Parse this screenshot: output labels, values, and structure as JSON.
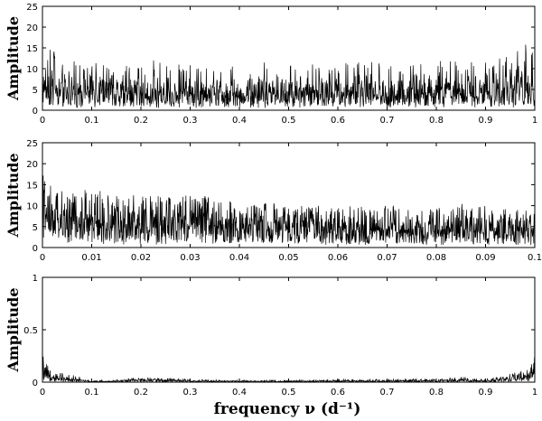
{
  "figure": {
    "xlabel": "frequency ν (d⁻¹)"
  },
  "chart_data": [
    {
      "type": "line",
      "title": "",
      "ylabel": "Amplitude",
      "xlim": [
        0,
        1
      ],
      "ylim": [
        0,
        25
      ],
      "xticks": [
        0,
        0.1,
        0.2,
        0.3,
        0.4,
        0.5,
        0.6,
        0.7,
        0.8,
        0.9,
        1
      ],
      "xtick_labels": [
        "0",
        "0.1",
        "0.2",
        "0.3",
        "0.4",
        "0.5",
        "0.6",
        "0.7",
        "0.8",
        "0.9",
        "1"
      ],
      "yticks": [
        0,
        5,
        10,
        15,
        20,
        25
      ],
      "ytick_labels": [
        "0",
        "5",
        "10",
        "15",
        "20",
        "25"
      ],
      "grid": false,
      "series": [
        {
          "color": "#000000",
          "style": "dense noise-like periodogram",
          "x": [
            0,
            0.02,
            0.05,
            0.1,
            0.15,
            0.2,
            0.25,
            0.3,
            0.35,
            0.4,
            0.45,
            0.5,
            0.55,
            0.6,
            0.65,
            0.7,
            0.75,
            0.8,
            0.85,
            0.9,
            0.95,
            0.98,
            1
          ],
          "envelope_max": [
            16,
            15,
            13,
            12,
            11,
            12,
            12,
            11,
            11,
            11,
            12,
            12,
            11,
            11,
            12,
            11,
            11,
            12,
            12,
            12,
            13,
            16,
            17
          ],
          "envelope_mean": [
            5,
            4.8,
            4.5,
            4.2,
            4,
            4,
            4,
            3.9,
            3.8,
            3.8,
            3.9,
            4,
            3.9,
            3.8,
            3.9,
            3.9,
            3.9,
            4,
            4.1,
            4.3,
            4.6,
            5,
            5.5
          ]
        }
      ]
    },
    {
      "type": "line",
      "title": "",
      "ylabel": "Amplitude",
      "xlim": [
        0,
        0.1
      ],
      "ylim": [
        0,
        25
      ],
      "xticks": [
        0,
        0.01,
        0.02,
        0.03,
        0.04,
        0.05,
        0.06,
        0.07,
        0.08,
        0.09,
        0.1
      ],
      "xtick_labels": [
        "0",
        "0.01",
        "0.02",
        "0.03",
        "0.04",
        "0.05",
        "0.06",
        "0.07",
        "0.08",
        "0.09",
        "0.1"
      ],
      "yticks": [
        0,
        5,
        10,
        15,
        20,
        25
      ],
      "ytick_labels": [
        "0",
        "5",
        "10",
        "15",
        "20",
        "25"
      ],
      "grid": false,
      "series": [
        {
          "color": "#000000",
          "style": "noise-like periodogram, zoomed",
          "x": [
            0,
            0.0005,
            0.001,
            0.002,
            0.005,
            0.01,
            0.015,
            0.02,
            0.025,
            0.03,
            0.035,
            0.04,
            0.045,
            0.05,
            0.055,
            0.06,
            0.065,
            0.07,
            0.075,
            0.08,
            0.085,
            0.09,
            0.095,
            0.1
          ],
          "envelope_max": [
            20,
            24,
            17,
            15,
            13,
            14,
            13,
            13,
            12,
            13,
            12,
            11,
            11,
            10,
            10,
            10,
            10,
            10,
            10,
            10,
            11,
            10,
            9,
            9
          ],
          "envelope_mean": [
            7,
            8,
            7,
            6.5,
            6,
            6,
            5.8,
            5.6,
            5.5,
            5.5,
            5.3,
            5,
            4.8,
            4.6,
            4.5,
            4.4,
            4.4,
            4.3,
            4.3,
            4.3,
            4.4,
            4.2,
            4.1,
            4
          ]
        }
      ]
    },
    {
      "type": "line",
      "title": "",
      "ylabel": "Amplitude",
      "xlabel": "frequency ν (d⁻¹)",
      "xlim": [
        0,
        1
      ],
      "ylim": [
        0,
        1
      ],
      "xticks": [
        0,
        0.1,
        0.2,
        0.3,
        0.4,
        0.5,
        0.6,
        0.7,
        0.8,
        0.9,
        1
      ],
      "xtick_labels": [
        "0",
        "0.1",
        "0.2",
        "0.3",
        "0.4",
        "0.5",
        "0.6",
        "0.7",
        "0.8",
        "0.9",
        "1"
      ],
      "yticks": [
        0,
        0.5,
        1
      ],
      "ytick_labels": [
        "0",
        "0.5",
        "1"
      ],
      "grid": false,
      "series": [
        {
          "color": "#000000",
          "style": "spectral window",
          "x": [
            0,
            0.005,
            0.02,
            0.05,
            0.08,
            0.1,
            0.15,
            0.2,
            0.25,
            0.3,
            0.4,
            0.5,
            0.6,
            0.7,
            0.8,
            0.85,
            0.9,
            0.92,
            0.95,
            0.98,
            0.995,
            1
          ],
          "envelope_max": [
            0.28,
            0.2,
            0.1,
            0.08,
            0.05,
            0.02,
            0.03,
            0.05,
            0.04,
            0.03,
            0.02,
            0.02,
            0.03,
            0.03,
            0.04,
            0.05,
            0.03,
            0.05,
            0.08,
            0.12,
            0.18,
            0.25
          ],
          "envelope_mean": [
            0.12,
            0.08,
            0.04,
            0.03,
            0.015,
            0.005,
            0.01,
            0.02,
            0.015,
            0.01,
            0.008,
            0.008,
            0.01,
            0.01,
            0.015,
            0.02,
            0.01,
            0.02,
            0.03,
            0.05,
            0.07,
            0.1
          ]
        }
      ]
    }
  ]
}
